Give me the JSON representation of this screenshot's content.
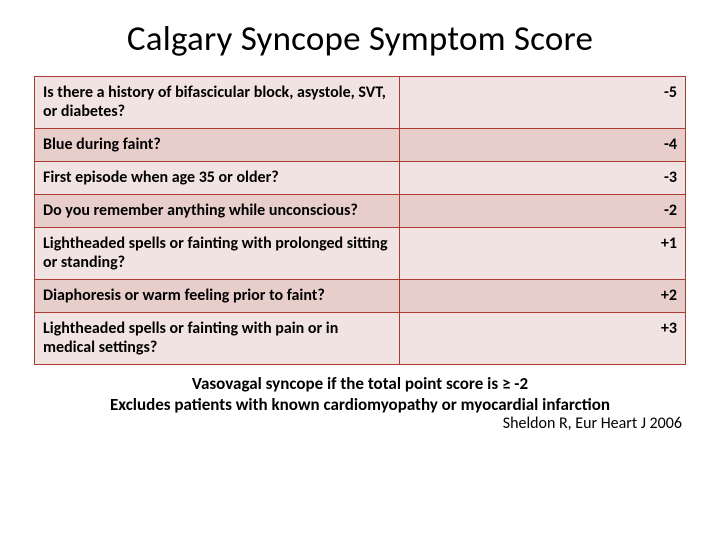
{
  "title": "Calgary Syncope Symptom Score",
  "table": {
    "border_color": "#aa3c33",
    "band_colors": [
      "#f1e3e1",
      "#e7cecb"
    ],
    "question_col_width_pct": 56,
    "value_col_width_pct": 44,
    "font_size_pt": 16,
    "font_weight": 700,
    "rows": [
      {
        "question": "Is there a history of bifascicular block, asystole, SVT, or diabetes?",
        "value": "-5"
      },
      {
        "question": "Blue during faint?",
        "value": "-4"
      },
      {
        "question": "First episode when age 35 or older?",
        "value": "-3"
      },
      {
        "question": "Do you remember anything while unconscious?",
        "value": "-2"
      },
      {
        "question": "Lightheaded spells or fainting with prolonged sitting or standing?",
        "value": "+1"
      },
      {
        "question": "Diaphoresis or warm feeling prior to faint?",
        "value": "+2"
      },
      {
        "question": "Lightheaded spells or fainting with pain or in medical settings?",
        "value": "+3"
      }
    ]
  },
  "footer_line1": "Vasovagal syncope if the total point score is ≥ -2",
  "footer_line2": "Excludes patients with known cardiomyopathy or myocardial infarction",
  "citation": "Sheldon R, Eur Heart J 2006"
}
